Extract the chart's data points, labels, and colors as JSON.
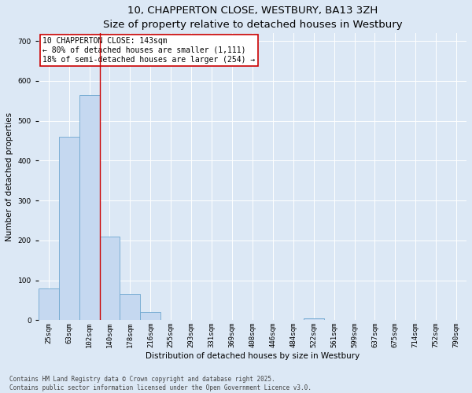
{
  "title": "10, CHAPPERTON CLOSE, WESTBURY, BA13 3ZH",
  "subtitle": "Size of property relative to detached houses in Westbury",
  "xlabel": "Distribution of detached houses by size in Westbury",
  "ylabel": "Number of detached properties",
  "categories": [
    "25sqm",
    "63sqm",
    "102sqm",
    "140sqm",
    "178sqm",
    "216sqm",
    "255sqm",
    "293sqm",
    "331sqm",
    "369sqm",
    "408sqm",
    "446sqm",
    "484sqm",
    "522sqm",
    "561sqm",
    "599sqm",
    "637sqm",
    "675sqm",
    "714sqm",
    "752sqm",
    "790sqm"
  ],
  "values": [
    80,
    460,
    565,
    210,
    65,
    20,
    0,
    0,
    0,
    0,
    0,
    0,
    0,
    5,
    0,
    0,
    0,
    0,
    0,
    0,
    0
  ],
  "bar_color": "#c5d8f0",
  "bar_edge_color": "#6fa8d0",
  "property_line_index": 3,
  "property_line_color": "#cc0000",
  "annotation_text": "10 CHAPPERTON CLOSE: 143sqm\n← 80% of detached houses are smaller (1,111)\n18% of semi-detached houses are larger (254) →",
  "annotation_box_color": "#ffffff",
  "annotation_box_edge": "#cc0000",
  "bg_color": "#dce8f5",
  "plot_bg_color": "#dce8f5",
  "footer_line1": "Contains HM Land Registry data © Crown copyright and database right 2025.",
  "footer_line2": "Contains public sector information licensed under the Open Government Licence v3.0.",
  "ylim": [
    0,
    720
  ],
  "yticks": [
    0,
    100,
    200,
    300,
    400,
    500,
    600,
    700
  ],
  "title_fontsize": 9.5,
  "subtitle_fontsize": 8.5,
  "axis_label_fontsize": 7.5,
  "tick_fontsize": 6.5,
  "annotation_fontsize": 7,
  "footer_fontsize": 5.5
}
